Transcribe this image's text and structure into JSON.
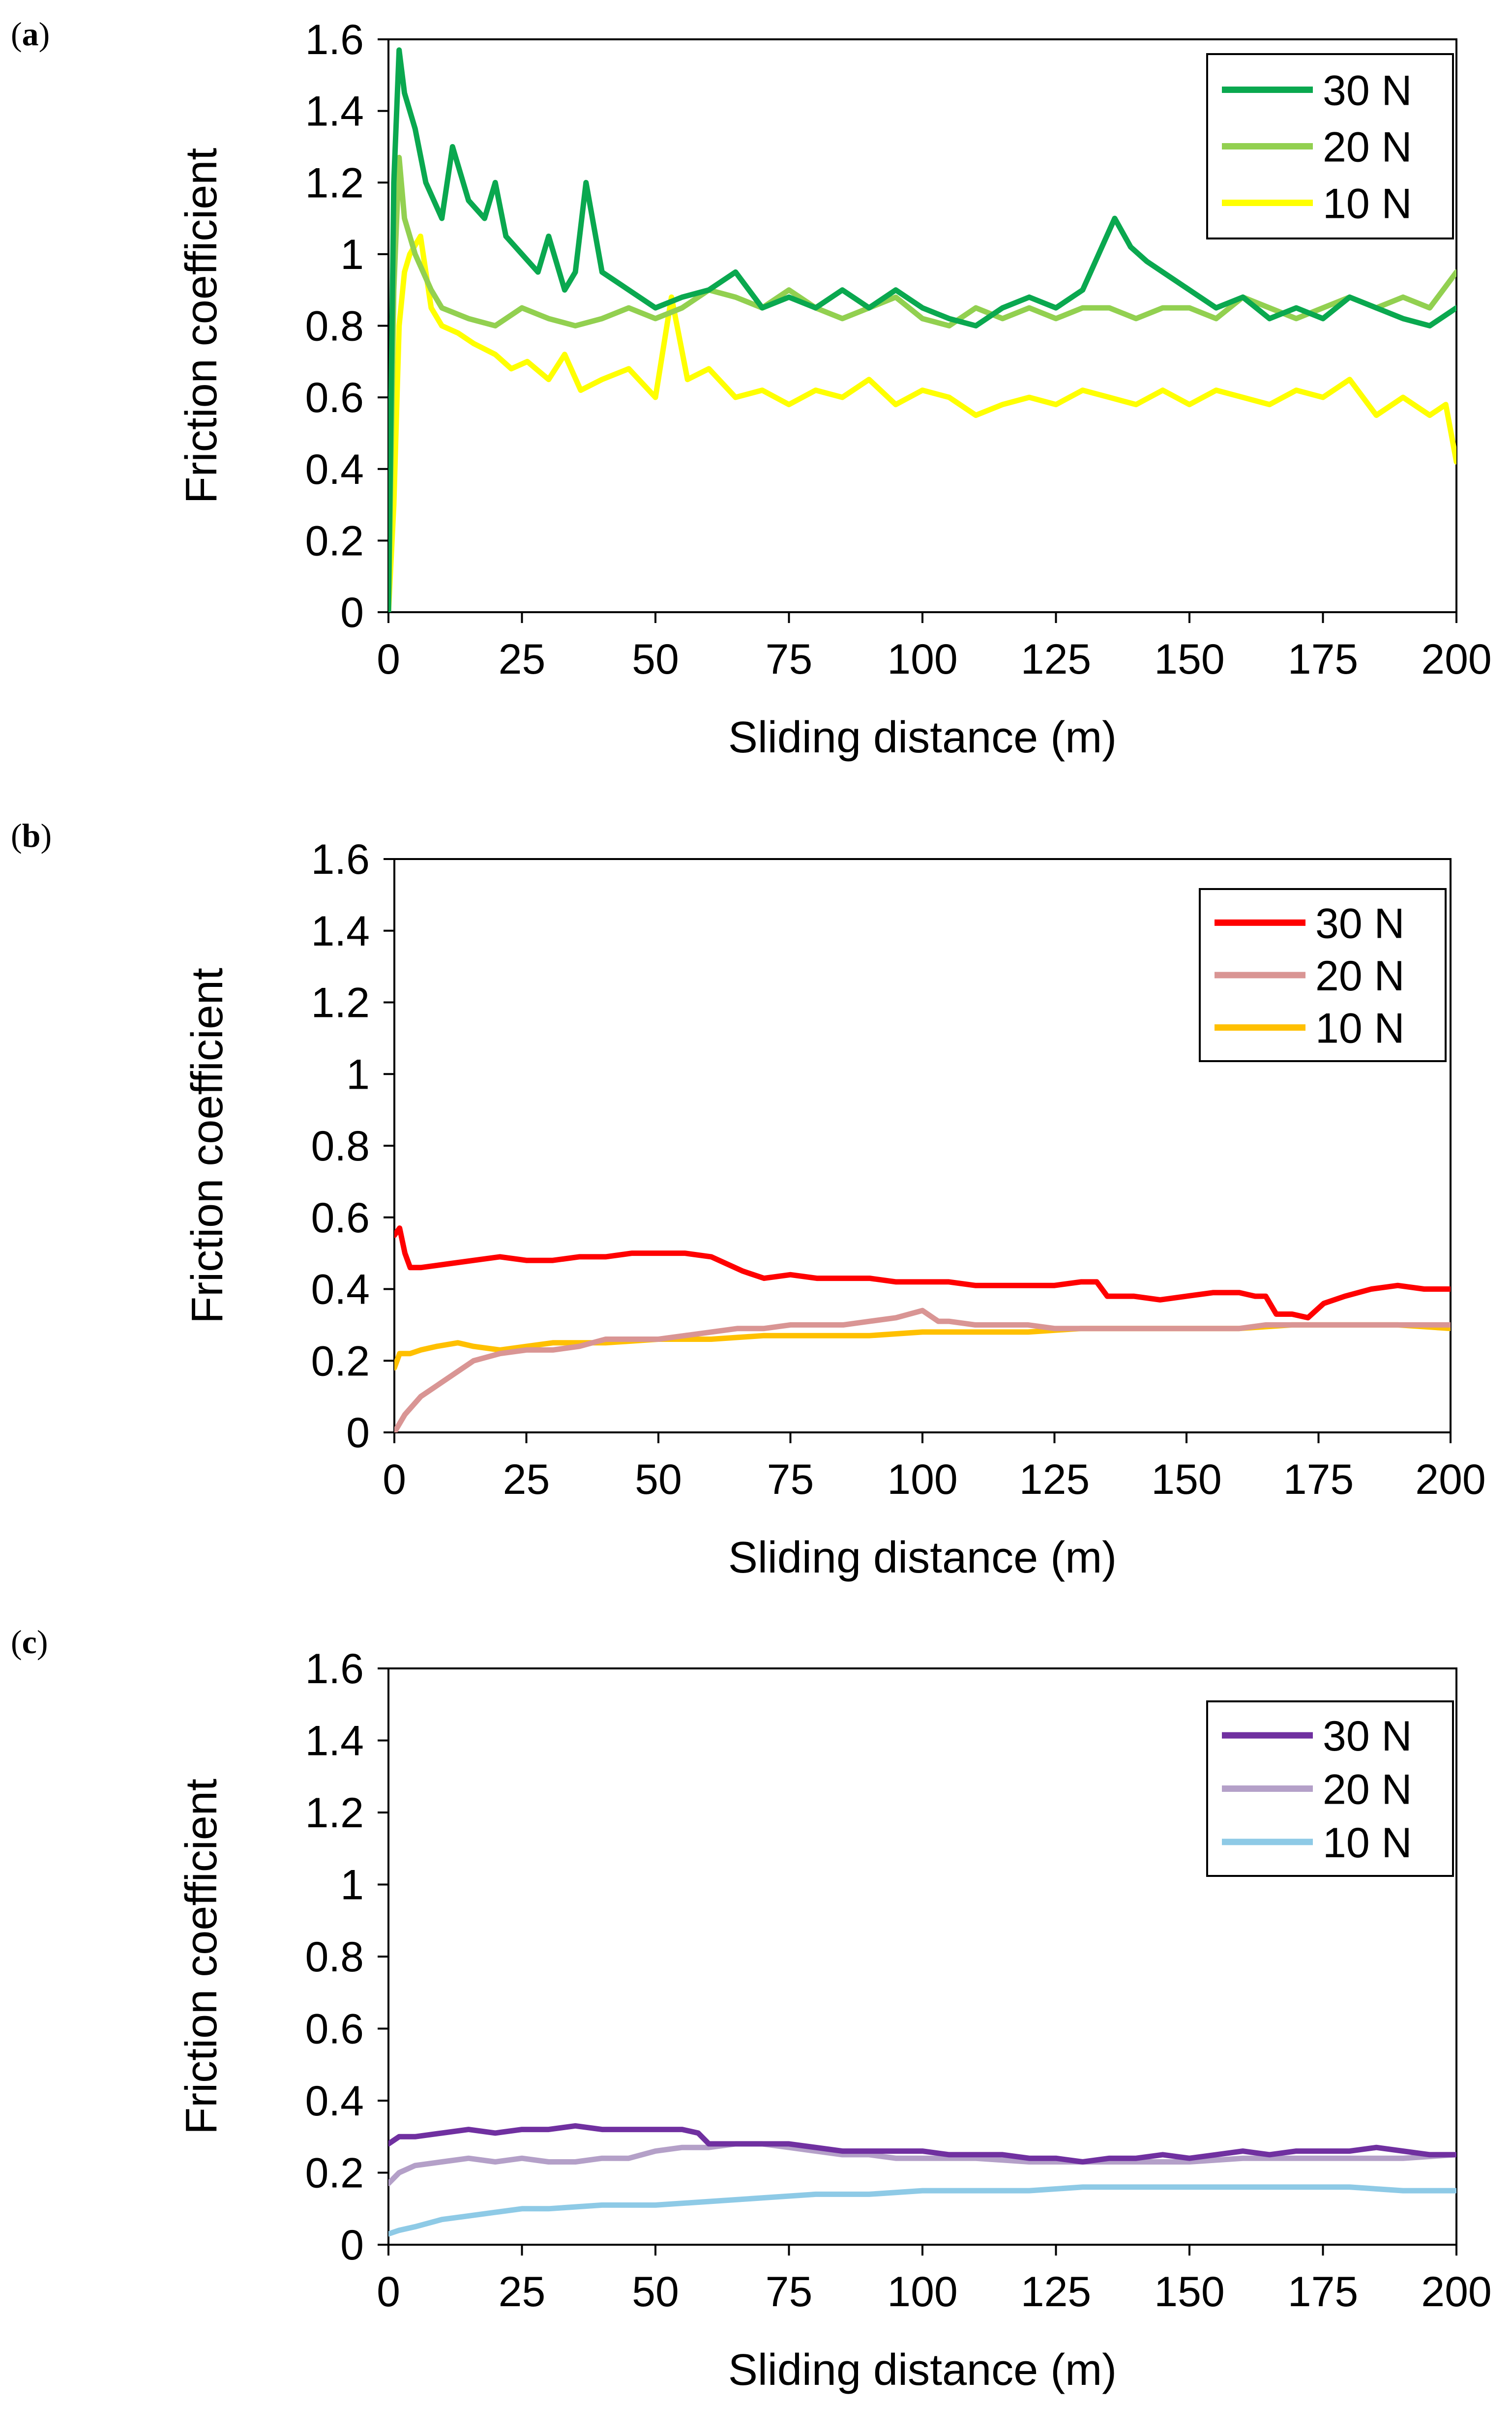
{
  "figure": {
    "panels": [
      "(a)",
      "(b)",
      "(c)"
    ]
  },
  "chart_data": [
    {
      "panel": "(a)",
      "type": "line",
      "title": "",
      "xlabel": "Sliding distance (m)",
      "ylabel": "Friction coefficient",
      "xlim": [
        0,
        200
      ],
      "ylim": [
        0,
        1.6
      ],
      "xticks": [
        "0",
        "25",
        "50",
        "75",
        "100",
        "125",
        "150",
        "175",
        "200"
      ],
      "yticks": [
        "0",
        "0.2",
        "0.4",
        "0.6",
        "0.8",
        "1",
        "1.2",
        "1.4",
        "1.6"
      ],
      "legend_position": "top-right",
      "series": [
        {
          "name": "30 N",
          "color": "#0aa84f",
          "x": [
            0,
            1,
            2,
            3,
            5,
            7,
            10,
            12,
            15,
            18,
            20,
            22,
            25,
            28,
            30,
            33,
            35,
            37,
            40,
            45,
            50,
            55,
            60,
            65,
            70,
            75,
            80,
            85,
            90,
            95,
            100,
            105,
            110,
            115,
            120,
            125,
            130,
            133,
            136,
            139,
            142,
            145,
            150,
            155,
            160,
            165,
            170,
            175,
            180,
            185,
            190,
            195,
            200
          ],
          "y": [
            0.0,
            1.2,
            1.57,
            1.45,
            1.35,
            1.2,
            1.1,
            1.3,
            1.15,
            1.1,
            1.2,
            1.05,
            1.0,
            0.95,
            1.05,
            0.9,
            0.95,
            1.2,
            0.95,
            0.9,
            0.85,
            0.88,
            0.9,
            0.95,
            0.85,
            0.88,
            0.85,
            0.9,
            0.85,
            0.9,
            0.85,
            0.82,
            0.8,
            0.85,
            0.88,
            0.85,
            0.9,
            1.0,
            1.1,
            1.02,
            0.98,
            0.95,
            0.9,
            0.85,
            0.88,
            0.82,
            0.85,
            0.82,
            0.88,
            0.85,
            0.82,
            0.8,
            0.85
          ]
        },
        {
          "name": "20 N",
          "color": "#92d050",
          "x": [
            0,
            1,
            2,
            3,
            5,
            8,
            10,
            15,
            20,
            25,
            30,
            35,
            40,
            45,
            50,
            55,
            60,
            65,
            70,
            75,
            80,
            85,
            90,
            95,
            100,
            105,
            110,
            115,
            120,
            125,
            130,
            135,
            140,
            145,
            150,
            155,
            160,
            165,
            170,
            175,
            180,
            185,
            190,
            195,
            200
          ],
          "y": [
            0.0,
            0.9,
            1.27,
            1.1,
            1.0,
            0.9,
            0.85,
            0.82,
            0.8,
            0.85,
            0.82,
            0.8,
            0.82,
            0.85,
            0.82,
            0.85,
            0.9,
            0.88,
            0.85,
            0.9,
            0.85,
            0.82,
            0.85,
            0.88,
            0.82,
            0.8,
            0.85,
            0.82,
            0.85,
            0.82,
            0.85,
            0.85,
            0.82,
            0.85,
            0.85,
            0.82,
            0.88,
            0.85,
            0.82,
            0.85,
            0.88,
            0.85,
            0.88,
            0.85,
            0.95
          ]
        },
        {
          "name": "10 N",
          "color": "#ffff00",
          "x": [
            0,
            1,
            2,
            3,
            4,
            6,
            8,
            10,
            13,
            16,
            20,
            23,
            26,
            30,
            33,
            36,
            40,
            45,
            50,
            53,
            56,
            60,
            65,
            70,
            75,
            80,
            85,
            90,
            95,
            100,
            105,
            110,
            115,
            120,
            125,
            130,
            135,
            140,
            145,
            150,
            155,
            160,
            165,
            170,
            175,
            180,
            185,
            190,
            195,
            198,
            200
          ],
          "y": [
            0.0,
            0.3,
            0.8,
            0.95,
            1.0,
            1.05,
            0.85,
            0.8,
            0.78,
            0.75,
            0.72,
            0.68,
            0.7,
            0.65,
            0.72,
            0.62,
            0.65,
            0.68,
            0.6,
            0.88,
            0.65,
            0.68,
            0.6,
            0.62,
            0.58,
            0.62,
            0.6,
            0.65,
            0.58,
            0.62,
            0.6,
            0.55,
            0.58,
            0.6,
            0.58,
            0.62,
            0.6,
            0.58,
            0.62,
            0.58,
            0.62,
            0.6,
            0.58,
            0.62,
            0.6,
            0.65,
            0.55,
            0.6,
            0.55,
            0.58,
            0.42
          ]
        }
      ]
    },
    {
      "panel": "(b)",
      "type": "line",
      "title": "",
      "xlabel": "Sliding distance (m)",
      "ylabel": "Friction coefficient",
      "xlim": [
        0,
        200
      ],
      "ylim": [
        0,
        1.6
      ],
      "xticks": [
        "0",
        "25",
        "50",
        "75",
        "100",
        "125",
        "150",
        "175",
        "200"
      ],
      "yticks": [
        "0",
        "0.2",
        "0.4",
        "0.6",
        "0.8",
        "1",
        "1.2",
        "1.4",
        "1.6"
      ],
      "legend_position": "top-right",
      "series": [
        {
          "name": "30 N",
          "color": "#ff0000",
          "x": [
            0,
            1,
            2,
            3,
            5,
            10,
            15,
            20,
            25,
            30,
            35,
            40,
            45,
            50,
            55,
            60,
            63,
            66,
            70,
            75,
            80,
            85,
            90,
            95,
            100,
            105,
            110,
            115,
            120,
            125,
            130,
            133,
            135,
            140,
            145,
            150,
            155,
            160,
            163,
            165,
            167,
            170,
            173,
            176,
            180,
            185,
            190,
            195,
            200
          ],
          "y": [
            0.55,
            0.57,
            0.5,
            0.46,
            0.46,
            0.47,
            0.48,
            0.49,
            0.48,
            0.48,
            0.49,
            0.49,
            0.5,
            0.5,
            0.5,
            0.49,
            0.47,
            0.45,
            0.43,
            0.44,
            0.43,
            0.43,
            0.43,
            0.42,
            0.42,
            0.42,
            0.41,
            0.41,
            0.41,
            0.41,
            0.42,
            0.42,
            0.38,
            0.38,
            0.37,
            0.38,
            0.39,
            0.39,
            0.38,
            0.38,
            0.33,
            0.33,
            0.32,
            0.36,
            0.38,
            0.4,
            0.41,
            0.4,
            0.4
          ]
        },
        {
          "name": "20 N",
          "color": "#d99594",
          "x": [
            0,
            2,
            5,
            10,
            15,
            20,
            25,
            30,
            35,
            40,
            45,
            50,
            55,
            60,
            65,
            70,
            75,
            80,
            85,
            90,
            95,
            100,
            103,
            105,
            110,
            115,
            120,
            125,
            130,
            135,
            140,
            145,
            150,
            155,
            160,
            165,
            170,
            175,
            180,
            185,
            190,
            195,
            200
          ],
          "y": [
            0.0,
            0.05,
            0.1,
            0.15,
            0.2,
            0.22,
            0.23,
            0.23,
            0.24,
            0.26,
            0.26,
            0.26,
            0.27,
            0.28,
            0.29,
            0.29,
            0.3,
            0.3,
            0.3,
            0.31,
            0.32,
            0.34,
            0.31,
            0.31,
            0.3,
            0.3,
            0.3,
            0.29,
            0.29,
            0.29,
            0.29,
            0.29,
            0.29,
            0.29,
            0.29,
            0.3,
            0.3,
            0.3,
            0.3,
            0.3,
            0.3,
            0.3,
            0.3
          ]
        },
        {
          "name": "10 N",
          "color": "#ffc000",
          "x": [
            0,
            1,
            3,
            5,
            8,
            12,
            15,
            20,
            25,
            30,
            40,
            50,
            60,
            70,
            80,
            90,
            100,
            110,
            120,
            130,
            140,
            150,
            160,
            170,
            180,
            190,
            200
          ],
          "y": [
            0.18,
            0.22,
            0.22,
            0.23,
            0.24,
            0.25,
            0.24,
            0.23,
            0.24,
            0.25,
            0.25,
            0.26,
            0.26,
            0.27,
            0.27,
            0.27,
            0.28,
            0.28,
            0.28,
            0.29,
            0.29,
            0.29,
            0.29,
            0.3,
            0.3,
            0.3,
            0.29
          ]
        }
      ]
    },
    {
      "panel": "(c)",
      "type": "line",
      "title": "",
      "xlabel": "Sliding distance (m)",
      "ylabel": "Friction coefficient",
      "xlim": [
        0,
        200
      ],
      "ylim": [
        0,
        1.6
      ],
      "xticks": [
        "0",
        "25",
        "50",
        "75",
        "100",
        "125",
        "150",
        "175",
        "200"
      ],
      "yticks": [
        "0",
        "0.2",
        "0.4",
        "0.6",
        "0.8",
        "1",
        "1.2",
        "1.4",
        "1.6"
      ],
      "legend_position": "top-right",
      "series": [
        {
          "name": "30 N",
          "color": "#7030a0",
          "x": [
            0,
            2,
            5,
            10,
            15,
            20,
            25,
            30,
            35,
            40,
            45,
            50,
            55,
            58,
            60,
            65,
            70,
            75,
            80,
            85,
            90,
            95,
            100,
            105,
            110,
            115,
            120,
            125,
            130,
            135,
            140,
            145,
            150,
            155,
            160,
            165,
            170,
            175,
            180,
            185,
            190,
            195,
            200
          ],
          "y": [
            0.28,
            0.3,
            0.3,
            0.31,
            0.32,
            0.31,
            0.32,
            0.32,
            0.33,
            0.32,
            0.32,
            0.32,
            0.32,
            0.31,
            0.28,
            0.28,
            0.28,
            0.28,
            0.27,
            0.26,
            0.26,
            0.26,
            0.26,
            0.25,
            0.25,
            0.25,
            0.24,
            0.24,
            0.23,
            0.24,
            0.24,
            0.25,
            0.24,
            0.25,
            0.26,
            0.25,
            0.26,
            0.26,
            0.26,
            0.27,
            0.26,
            0.25,
            0.25
          ]
        },
        {
          "name": "20 N",
          "color": "#b4a0c8",
          "x": [
            0,
            2,
            5,
            10,
            15,
            20,
            25,
            30,
            35,
            40,
            45,
            50,
            55,
            60,
            65,
            70,
            75,
            80,
            85,
            90,
            95,
            100,
            110,
            120,
            130,
            140,
            150,
            160,
            170,
            180,
            190,
            200
          ],
          "y": [
            0.17,
            0.2,
            0.22,
            0.23,
            0.24,
            0.23,
            0.24,
            0.23,
            0.23,
            0.24,
            0.24,
            0.26,
            0.27,
            0.27,
            0.28,
            0.28,
            0.27,
            0.26,
            0.25,
            0.25,
            0.24,
            0.24,
            0.24,
            0.23,
            0.23,
            0.23,
            0.23,
            0.24,
            0.24,
            0.24,
            0.24,
            0.25
          ]
        },
        {
          "name": "10 N",
          "color": "#8ecae6",
          "x": [
            0,
            2,
            5,
            10,
            15,
            20,
            25,
            30,
            40,
            50,
            60,
            70,
            80,
            90,
            100,
            110,
            120,
            130,
            140,
            150,
            160,
            170,
            180,
            190,
            200
          ],
          "y": [
            0.03,
            0.04,
            0.05,
            0.07,
            0.08,
            0.09,
            0.1,
            0.1,
            0.11,
            0.11,
            0.12,
            0.13,
            0.14,
            0.14,
            0.15,
            0.15,
            0.15,
            0.16,
            0.16,
            0.16,
            0.16,
            0.16,
            0.16,
            0.15,
            0.15
          ]
        }
      ]
    }
  ]
}
